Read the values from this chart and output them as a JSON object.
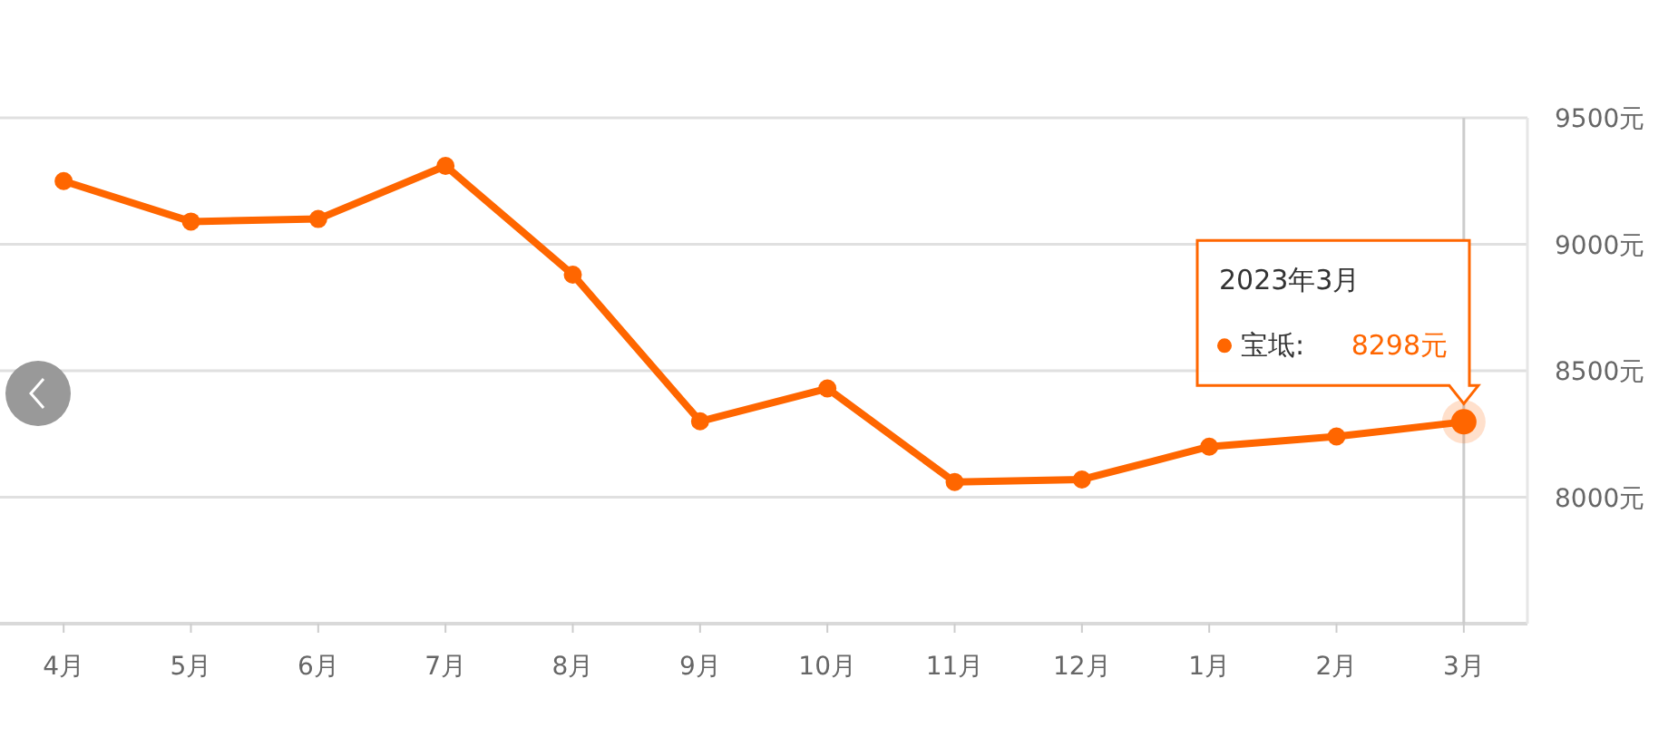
{
  "chart_data": {
    "type": "line",
    "categories": [
      "4月",
      "5月",
      "6月",
      "7月",
      "8月",
      "9月",
      "10月",
      "11月",
      "12月",
      "1月",
      "2月",
      "3月"
    ],
    "series": [
      {
        "name": "宝坻:",
        "color": "#ff6600",
        "values": [
          9250,
          9090,
          9100,
          9310,
          8880,
          8300,
          8430,
          8060,
          8070,
          8200,
          8240,
          8298
        ],
        "value_labels": [
          null,
          null,
          null,
          null,
          null,
          null,
          null,
          null,
          null,
          null,
          null,
          "8298元"
        ]
      }
    ],
    "ylim": [
      7500,
      9500
    ],
    "yticks": [
      {
        "value": 8000,
        "label": "8000元"
      },
      {
        "value": 8500,
        "label": "8500元"
      },
      {
        "value": 9000,
        "label": "9000元"
      },
      {
        "value": 9500,
        "label": "9500元"
      }
    ],
    "grid": "y",
    "marker": "circle",
    "line_style": "solid",
    "legend": "right",
    "ref_lines": [
      {
        "axis": "x",
        "value": "3月",
        "color": "#cccccc"
      }
    ],
    "annotations": [
      "2023年3月"
    ]
  }
}
